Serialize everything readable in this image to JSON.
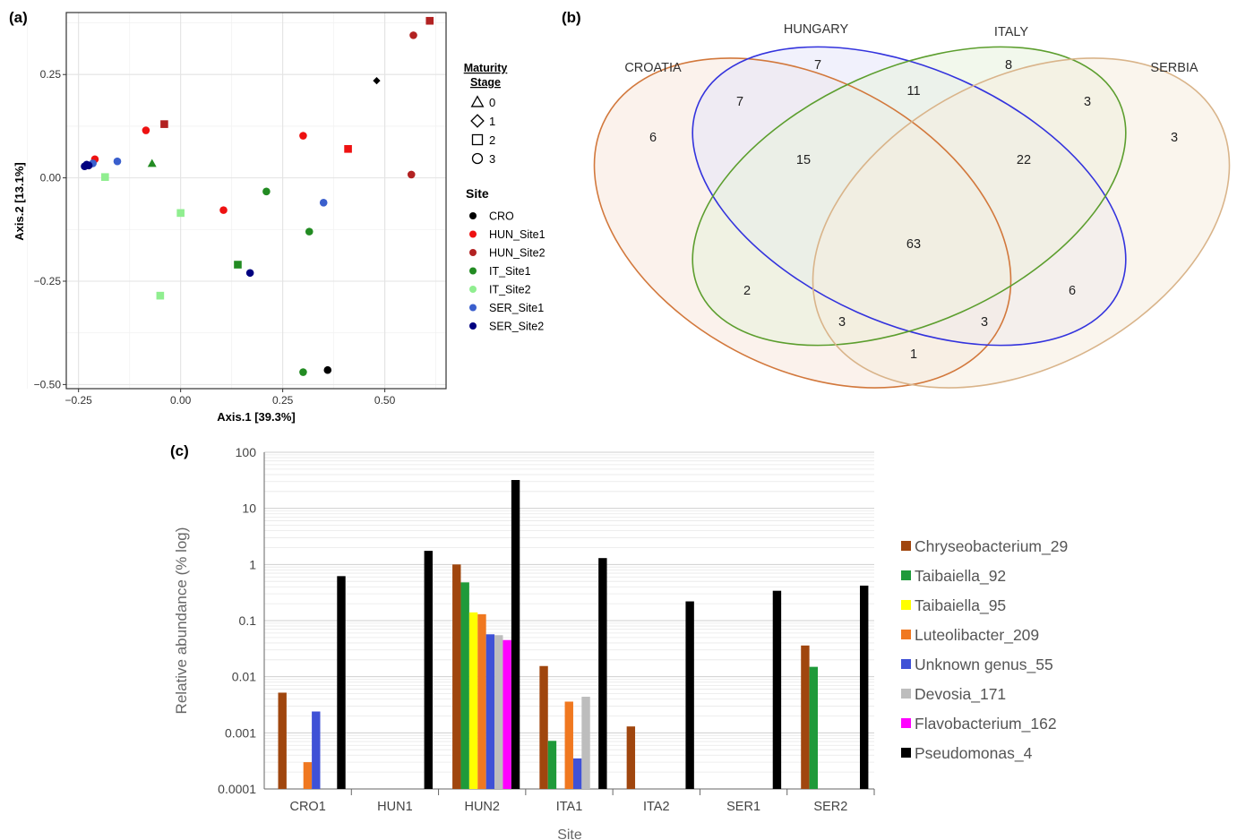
{
  "panels": {
    "a": "(a)",
    "b": "(b)",
    "c": "(c)"
  },
  "chart_data": [
    {
      "type": "scatter",
      "panel": "(a)",
      "xlabel": "Axis.1   [39.3%]",
      "ylabel": "Axis.2   [13.1%]",
      "xlim": [
        -0.28,
        0.65
      ],
      "ylim": [
        -0.51,
        0.4
      ],
      "xticks": [
        -0.25,
        0.0,
        0.25,
        0.5
      ],
      "xtick_labels": [
        "−0.25",
        "0.00",
        "0.25",
        "0.50"
      ],
      "yticks": [
        -0.5,
        -0.25,
        0.0,
        0.25
      ],
      "ytick_labels": [
        "−0.50",
        "−0.25",
        "0.00",
        "0.25"
      ],
      "grid": true,
      "legend_shape": {
        "title": "Maturity Stage",
        "title_lines": [
          "Maturity",
          "Stage"
        ],
        "items": [
          {
            "label": "0",
            "shape": "triangle"
          },
          {
            "label": "1",
            "shape": "diamond"
          },
          {
            "label": "2",
            "shape": "square"
          },
          {
            "label": "3",
            "shape": "circle"
          }
        ]
      },
      "legend_site": {
        "title": "Site",
        "items": [
          {
            "label": "CRO",
            "color": "#000000"
          },
          {
            "label": "HUN_Site1",
            "color": "#ee1111"
          },
          {
            "label": "HUN_Site2",
            "color": "#b22222"
          },
          {
            "label": "IT_Site1",
            "color": "#228b22"
          },
          {
            "label": "IT_Site2",
            "color": "#90ee90"
          },
          {
            "label": "SER_Site1",
            "color": "#3a5fcd"
          },
          {
            "label": "SER_Site2",
            "color": "#000080"
          }
        ]
      },
      "points": [
        {
          "x": 0.48,
          "y": 0.235,
          "stage": "1",
          "site": "CRO"
        },
        {
          "x": 0.36,
          "y": -0.465,
          "stage": "3",
          "site": "CRO"
        },
        {
          "x": -0.085,
          "y": 0.115,
          "stage": "3",
          "site": "HUN_Site1"
        },
        {
          "x": -0.21,
          "y": 0.045,
          "stage": "3",
          "site": "HUN_Site1"
        },
        {
          "x": 0.3,
          "y": 0.102,
          "stage": "3",
          "site": "HUN_Site1"
        },
        {
          "x": 0.41,
          "y": 0.07,
          "stage": "2",
          "site": "HUN_Site1"
        },
        {
          "x": 0.105,
          "y": -0.078,
          "stage": "3",
          "site": "HUN_Site1"
        },
        {
          "x": 0.61,
          "y": 0.38,
          "stage": "2",
          "site": "HUN_Site2"
        },
        {
          "x": 0.57,
          "y": 0.345,
          "stage": "3",
          "site": "HUN_Site2"
        },
        {
          "x": -0.04,
          "y": 0.13,
          "stage": "2",
          "site": "HUN_Site2"
        },
        {
          "x": 0.565,
          "y": 0.008,
          "stage": "3",
          "site": "HUN_Site2"
        },
        {
          "x": -0.225,
          "y": 0.03,
          "stage": "3",
          "site": "HUN_Site2"
        },
        {
          "x": -0.07,
          "y": 0.035,
          "stage": "0",
          "site": "IT_Site1"
        },
        {
          "x": 0.21,
          "y": -0.033,
          "stage": "3",
          "site": "IT_Site1"
        },
        {
          "x": 0.315,
          "y": -0.13,
          "stage": "3",
          "site": "IT_Site1"
        },
        {
          "x": 0.14,
          "y": -0.21,
          "stage": "2",
          "site": "IT_Site1"
        },
        {
          "x": 0.3,
          "y": -0.47,
          "stage": "3",
          "site": "IT_Site1"
        },
        {
          "x": -0.185,
          "y": 0.002,
          "stage": "2",
          "site": "IT_Site2"
        },
        {
          "x": 0.0,
          "y": -0.085,
          "stage": "2",
          "site": "IT_Site2"
        },
        {
          "x": -0.05,
          "y": -0.285,
          "stage": "2",
          "site": "IT_Site2"
        },
        {
          "x": -0.155,
          "y": 0.04,
          "stage": "3",
          "site": "SER_Site1"
        },
        {
          "x": 0.35,
          "y": -0.06,
          "stage": "3",
          "site": "SER_Site1"
        },
        {
          "x": -0.215,
          "y": 0.035,
          "stage": "3",
          "site": "SER_Site1"
        },
        {
          "x": -0.235,
          "y": 0.028,
          "stage": "3",
          "site": "SER_Site2"
        },
        {
          "x": -0.225,
          "y": 0.03,
          "stage": "3",
          "site": "SER_Site2"
        },
        {
          "x": -0.23,
          "y": 0.032,
          "stage": "3",
          "site": "SER_Site2"
        },
        {
          "x": 0.17,
          "y": -0.23,
          "stage": "3",
          "site": "SER_Site2"
        }
      ]
    },
    {
      "type": "venn",
      "panel": "(b)",
      "sets": [
        {
          "name": "CROATIA",
          "color": "#d2783c",
          "fill": "#f8e8dc"
        },
        {
          "name": "HUNGARY",
          "color": "#3333dd",
          "fill": "#e6e6fa"
        },
        {
          "name": "ITALY",
          "color": "#5c9e2e",
          "fill": "#e8f2dc"
        },
        {
          "name": "SERBIA",
          "color": "#d9b48a",
          "fill": "#f5ecdf"
        }
      ],
      "regions": [
        {
          "sets": [
            "CROATIA"
          ],
          "value": 6
        },
        {
          "sets": [
            "HUNGARY"
          ],
          "value": 7
        },
        {
          "sets": [
            "ITALY"
          ],
          "value": 8
        },
        {
          "sets": [
            "SERBIA"
          ],
          "value": 3
        },
        {
          "sets": [
            "CROATIA",
            "HUNGARY"
          ],
          "value": 7
        },
        {
          "sets": [
            "HUNGARY",
            "ITALY"
          ],
          "value": 11
        },
        {
          "sets": [
            "ITALY",
            "SERBIA"
          ],
          "value": 3
        },
        {
          "sets": [
            "CROATIA",
            "HUNGARY",
            "ITALY"
          ],
          "value": 15
        },
        {
          "sets": [
            "HUNGARY",
            "ITALY",
            "SERBIA"
          ],
          "value": 22
        },
        {
          "sets": [
            "CROATIA",
            "HUNGARY",
            "ITALY",
            "SERBIA"
          ],
          "value": 63
        },
        {
          "sets": [
            "CROATIA",
            "ITALY"
          ],
          "value": 2
        },
        {
          "sets": [
            "HUNGARY",
            "SERBIA"
          ],
          "value": 6
        },
        {
          "sets": [
            "CROATIA",
            "ITALY",
            "SERBIA"
          ],
          "value": 3
        },
        {
          "sets": [
            "CROATIA",
            "HUNGARY",
            "SERBIA"
          ],
          "value": 3
        },
        {
          "sets": [
            "CROATIA",
            "SERBIA"
          ],
          "value": 1
        }
      ]
    },
    {
      "type": "bar",
      "panel": "(c)",
      "scale": "log",
      "xlabel": "Site",
      "ylabel": "Relative abundance (% log)",
      "ylim": [
        0.0001,
        100
      ],
      "ytick_labels": [
        "0.0001",
        "0.001",
        "0.01",
        "0.1",
        "1",
        "10",
        "100"
      ],
      "categories": [
        "CRO1",
        "HUN1",
        "HUN2",
        "ITA1",
        "ITA2",
        "SER1",
        "SER2"
      ],
      "legend_position": "right",
      "series": [
        {
          "name": "Chryseobacterium_29",
          "color": "#a0460e",
          "values": [
            0.0052,
            null,
            1.0,
            0.0155,
            0.0013,
            null,
            0.036
          ]
        },
        {
          "name": "Taibaiella_92",
          "color": "#1f9a3a",
          "values": [
            null,
            null,
            0.48,
            0.00072,
            null,
            null,
            0.015
          ]
        },
        {
          "name": "Taibaiella_95",
          "color": "#ffff00",
          "values": [
            null,
            null,
            0.14,
            null,
            null,
            null,
            null
          ]
        },
        {
          "name": "Luteolibacter_209",
          "color": "#f07820",
          "values": [
            0.0003,
            null,
            0.13,
            0.0036,
            null,
            null,
            null
          ]
        },
        {
          "name": "Unknown genus_55",
          "color": "#3f51d6",
          "values": [
            0.0024,
            null,
            0.057,
            0.00035,
            null,
            null,
            null
          ]
        },
        {
          "name": "Devosia_171",
          "color": "#bdbdbd",
          "values": [
            null,
            null,
            0.055,
            0.0044,
            null,
            null,
            null
          ]
        },
        {
          "name": "Flavobacterium_162",
          "color": "#ff00ff",
          "values": [
            null,
            null,
            0.045,
            null,
            null,
            null,
            null
          ]
        },
        {
          "name": "Pseudomonas_4",
          "color": "#000000",
          "values": [
            0.62,
            1.75,
            32,
            1.3,
            0.22,
            0.34,
            0.42
          ]
        }
      ]
    }
  ]
}
